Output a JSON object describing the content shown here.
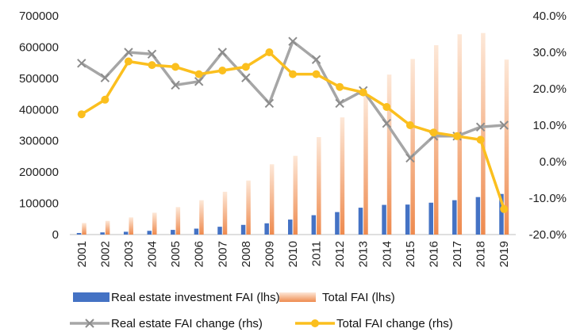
{
  "chart_data": {
    "type": "bar",
    "categories": [
      "2001",
      "2002",
      "2003",
      "2004",
      "2005",
      "2006",
      "2007",
      "2008",
      "2009",
      "2010",
      "2011",
      "2012",
      "2013",
      "2014",
      "2015",
      "2016",
      "2017",
      "2018",
      "2019"
    ],
    "left_axis": {
      "min": 0,
      "max": 700000,
      "step": 100000,
      "tick_labels": [
        "0",
        "100000",
        "200000",
        "300000",
        "400000",
        "500000",
        "600000",
        "700000"
      ]
    },
    "right_axis": {
      "min": -20,
      "max": 40,
      "step": 10,
      "tick_labels": [
        "-20.0%",
        "-10.0%",
        "0.0%",
        "10.0%",
        "20.0%",
        "30.0%",
        "40.0%"
      ]
    },
    "series": [
      {
        "name": "Real estate investment FAI (lhs)",
        "type": "bar",
        "axis": "left",
        "color": "#4472c4",
        "values": [
          5000,
          7000,
          9000,
          12000,
          15000,
          19000,
          25000,
          31000,
          36000,
          48000,
          62000,
          72000,
          86000,
          95000,
          96000,
          102000,
          110000,
          120000,
          130000
        ]
      },
      {
        "name": "Total FAI (lhs)",
        "type": "bar",
        "axis": "left",
        "color": "#ee8a4e",
        "values": [
          37000,
          44000,
          55000,
          70000,
          88000,
          110000,
          137000,
          173000,
          225000,
          252000,
          312000,
          375000,
          447000,
          512000,
          562000,
          606000,
          641000,
          645000,
          560000
        ]
      },
      {
        "name": "Real estate FAI change (rhs)",
        "type": "line",
        "axis": "right",
        "color": "#a6a6a6",
        "marker": "x",
        "values": [
          27,
          23,
          30,
          29.5,
          21,
          22,
          30,
          23,
          16,
          33,
          28,
          16,
          19.5,
          10.5,
          1,
          7,
          7,
          9.5,
          10
        ]
      },
      {
        "name": "Total FAI change (rhs)",
        "type": "line",
        "axis": "right",
        "color": "#fbbf1e",
        "marker": "circle",
        "values": [
          13,
          17,
          27.5,
          26.5,
          26,
          24,
          25,
          26,
          30,
          24,
          24,
          20.5,
          19,
          15,
          10,
          8,
          7,
          6,
          -13
        ]
      }
    ],
    "legend": "bottom",
    "grid": false
  }
}
